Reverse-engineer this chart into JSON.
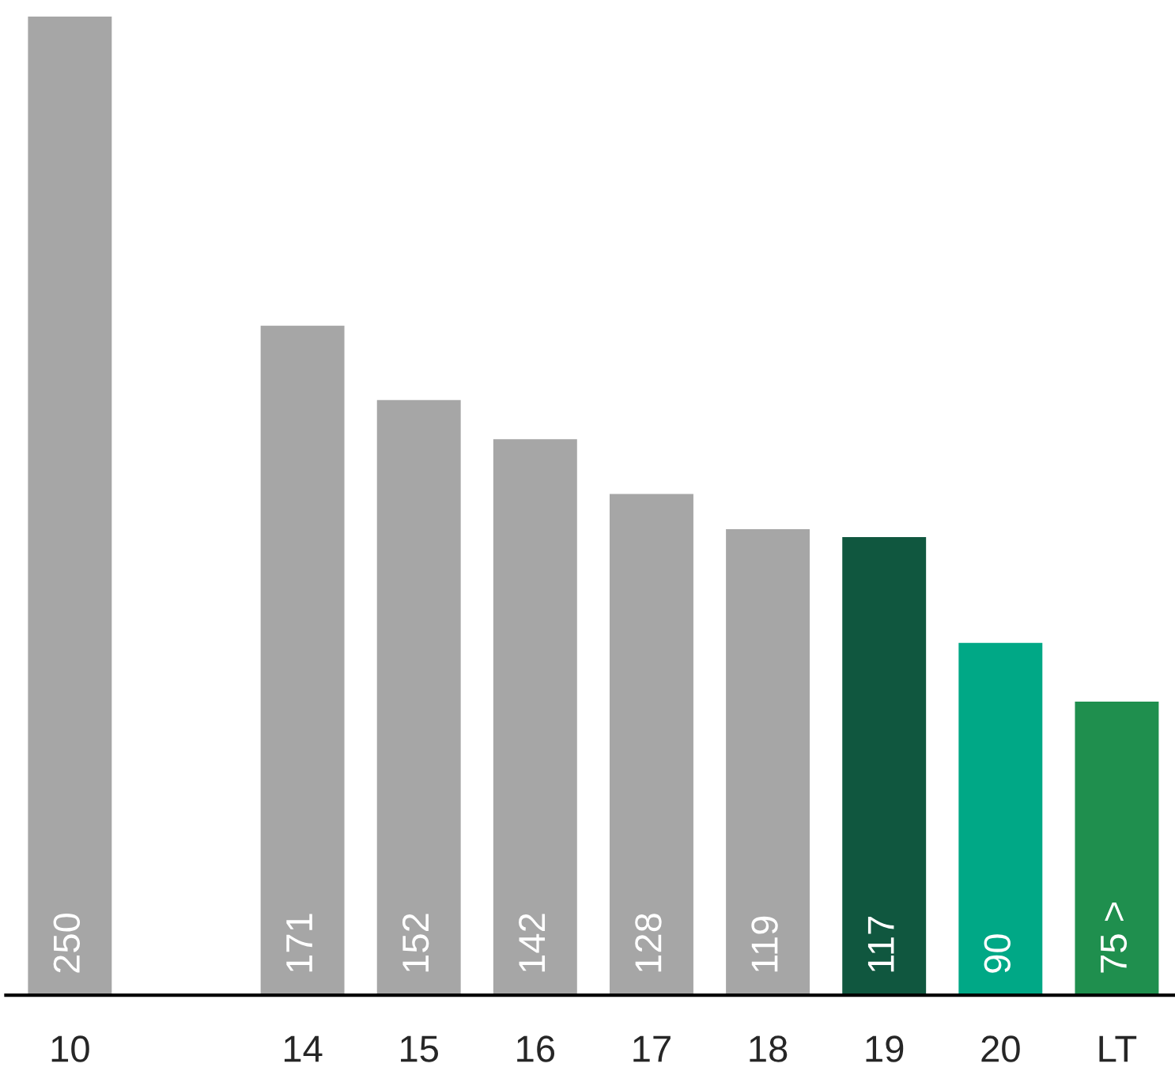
{
  "chart_data": {
    "type": "bar",
    "categories": [
      "10",
      null,
      "14",
      "15",
      "16",
      "17",
      "18",
      "19",
      "20",
      "LT"
    ],
    "values": [
      250,
      null,
      171,
      152,
      142,
      128,
      119,
      117,
      90,
      75
    ],
    "colors": [
      "#a6a6a6",
      null,
      "#a6a6a6",
      "#a6a6a6",
      "#a6a6a6",
      "#a6a6a6",
      "#a6a6a6",
      "#10573f",
      "#00a886",
      "#1f8f4e"
    ],
    "value_labels": [
      "250",
      null,
      "171",
      "152",
      "142",
      "128",
      "119",
      "117",
      "90",
      "75 >"
    ],
    "grid": false,
    "legend": false
  }
}
